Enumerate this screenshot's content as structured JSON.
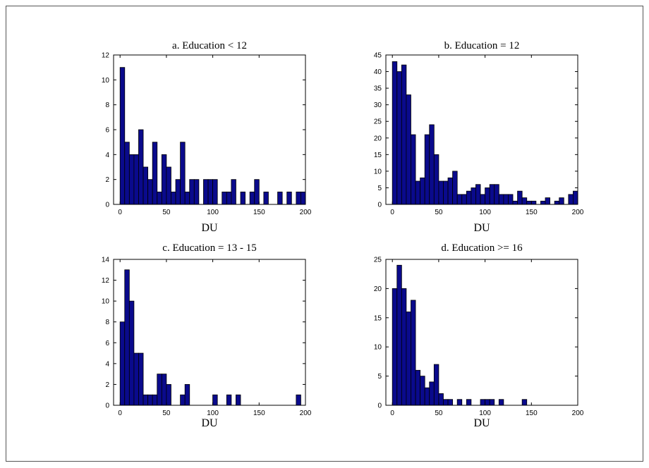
{
  "chart_data": [
    {
      "type": "bar",
      "title": "a. Education < 12",
      "xlabel": "DU",
      "ylabel": "",
      "xlim": [
        -7,
        200
      ],
      "ylim": [
        0,
        12
      ],
      "xticks": [
        "0",
        "50",
        "100",
        "150",
        "200"
      ],
      "yticks": [
        "0",
        "2",
        "4",
        "6",
        "8",
        "10",
        "12"
      ],
      "bin_width": 5,
      "bins_start": [
        0,
        5,
        10,
        15,
        20,
        25,
        30,
        35,
        40,
        45,
        50,
        55,
        60,
        65,
        70,
        75,
        80,
        85,
        90,
        95,
        100,
        105,
        110,
        115,
        120,
        125,
        130,
        135,
        140,
        145,
        150,
        155,
        160,
        165,
        170,
        175,
        180,
        185,
        190,
        195
      ],
      "values": [
        11,
        5,
        4,
        4,
        6,
        3,
        2,
        5,
        1,
        4,
        3,
        1,
        2,
        5,
        1,
        2,
        2,
        0,
        2,
        2,
        2,
        0,
        1,
        1,
        2,
        0,
        1,
        0,
        1,
        2,
        0,
        1,
        0,
        0,
        1,
        0,
        1,
        0,
        1,
        1
      ],
      "bar_color": "#0a0a8c"
    },
    {
      "type": "bar",
      "title": "b. Education = 12",
      "xlabel": "DU",
      "ylabel": "",
      "xlim": [
        -7,
        200
      ],
      "ylim": [
        0,
        45
      ],
      "xticks": [
        "0",
        "50",
        "100",
        "150",
        "200"
      ],
      "yticks": [
        "0",
        "5",
        "10",
        "15",
        "20",
        "25",
        "30",
        "35",
        "40",
        "45"
      ],
      "bin_width": 5,
      "bins_start": [
        0,
        5,
        10,
        15,
        20,
        25,
        30,
        35,
        40,
        45,
        50,
        55,
        60,
        65,
        70,
        75,
        80,
        85,
        90,
        95,
        100,
        105,
        110,
        115,
        120,
        125,
        130,
        135,
        140,
        145,
        150,
        155,
        160,
        165,
        170,
        175,
        180,
        185,
        190,
        195
      ],
      "values": [
        43,
        40,
        42,
        33,
        21,
        7,
        8,
        21,
        24,
        15,
        7,
        7,
        8,
        10,
        3,
        3,
        4,
        5,
        6,
        3,
        5,
        6,
        6,
        3,
        3,
        3,
        1,
        4,
        2,
        1,
        1,
        0,
        1,
        2,
        0,
        1,
        2,
        0,
        3,
        4
      ],
      "bar_color": "#0a0a8c"
    },
    {
      "type": "bar",
      "title": "c. Education = 13 - 15",
      "xlabel": "DU",
      "ylabel": "",
      "xlim": [
        -7,
        200
      ],
      "ylim": [
        0,
        14
      ],
      "xticks": [
        "0",
        "50",
        "100",
        "150",
        "200"
      ],
      "yticks": [
        "0",
        "2",
        "4",
        "6",
        "8",
        "10",
        "12",
        "14"
      ],
      "bin_width": 5,
      "bins_start": [
        0,
        5,
        10,
        15,
        20,
        25,
        30,
        35,
        40,
        45,
        50,
        55,
        60,
        65,
        70,
        75,
        80,
        85,
        90,
        95,
        100,
        105,
        110,
        115,
        120,
        125,
        130,
        135,
        140,
        145,
        150,
        155,
        160,
        165,
        170,
        175,
        180,
        185,
        190,
        195
      ],
      "values": [
        8,
        13,
        10,
        5,
        5,
        1,
        1,
        1,
        3,
        3,
        2,
        0,
        0,
        1,
        2,
        0,
        0,
        0,
        0,
        0,
        1,
        0,
        0,
        1,
        0,
        1,
        0,
        0,
        0,
        0,
        0,
        0,
        0,
        0,
        0,
        0,
        0,
        0,
        1,
        0
      ],
      "bar_color": "#0a0a8c"
    },
    {
      "type": "bar",
      "title": "d. Education >= 16",
      "xlabel": "DU",
      "ylabel": "",
      "xlim": [
        -7,
        200
      ],
      "ylim": [
        0,
        25
      ],
      "xticks": [
        "0",
        "50",
        "100",
        "150",
        "200"
      ],
      "yticks": [
        "0",
        "5",
        "10",
        "15",
        "20",
        "25"
      ],
      "bin_width": 5,
      "bins_start": [
        0,
        5,
        10,
        15,
        20,
        25,
        30,
        35,
        40,
        45,
        50,
        55,
        60,
        65,
        70,
        75,
        80,
        85,
        90,
        95,
        100,
        105,
        110,
        115,
        120,
        125,
        130,
        135,
        140,
        145,
        150,
        155,
        160,
        165,
        170,
        175,
        180,
        185,
        190,
        195
      ],
      "values": [
        20,
        24,
        20,
        16,
        18,
        6,
        5,
        3,
        4,
        7,
        2,
        1,
        1,
        0,
        1,
        0,
        1,
        0,
        0,
        1,
        1,
        1,
        0,
        1,
        0,
        0,
        0,
        0,
        1,
        0,
        0,
        0,
        0,
        0,
        0,
        0,
        0,
        0,
        0,
        0
      ],
      "bar_color": "#0a0a8c"
    }
  ]
}
